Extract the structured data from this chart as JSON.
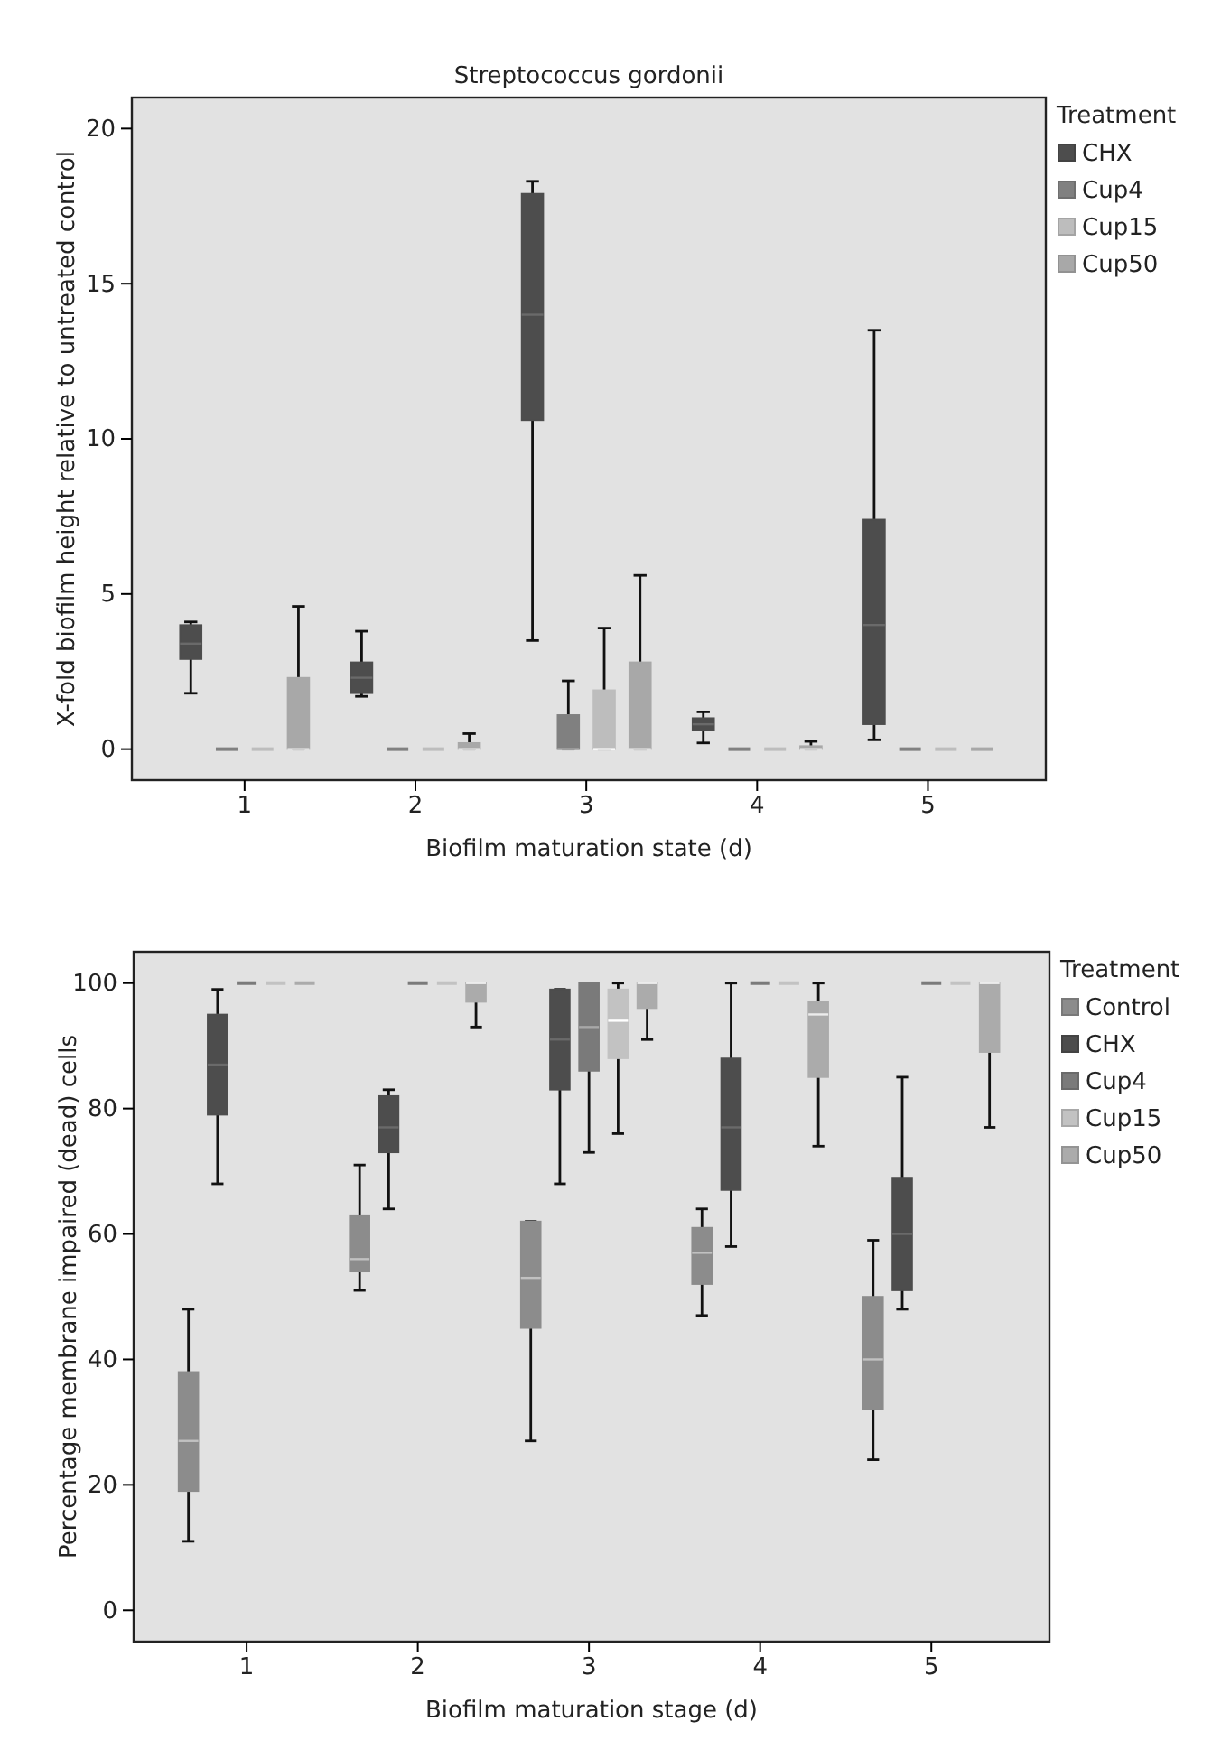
{
  "chart_data": [
    {
      "type": "box",
      "title": "Streptococcus gordonii",
      "xlabel": "Biofilm maturation state (d)",
      "ylabel": "X-fold biofilm height relative to untreated control",
      "legend_title": "Treatment",
      "legend": "top right",
      "categories": [
        "1",
        "2",
        "3",
        "4",
        "5"
      ],
      "ylim": [
        -1,
        21
      ],
      "yticks": [
        0,
        5,
        10,
        15,
        20
      ],
      "series": [
        {
          "name": "CHX",
          "color": "#4d4d4d",
          "boxes": [
            {
              "low": 1.8,
              "q1": 2.9,
              "median": 3.4,
              "q3": 4.0,
              "high": 4.1
            },
            {
              "low": 1.7,
              "q1": 1.8,
              "median": 2.3,
              "q3": 2.8,
              "high": 3.8
            },
            {
              "low": 3.5,
              "q1": 10.6,
              "median": 14,
              "q3": 17.9,
              "high": 18.3
            },
            {
              "low": 0.2,
              "q1": 0.6,
              "median": 0.8,
              "q3": 1.0,
              "high": 1.2
            },
            {
              "low": 0.3,
              "q1": 0.8,
              "median": 4,
              "q3": 7.4,
              "high": 13.5
            }
          ]
        },
        {
          "name": "Cup4",
          "color": "#808080",
          "boxes": [
            {
              "low": 0,
              "q1": 0,
              "median": 0,
              "q3": 0,
              "high": 0
            },
            {
              "low": 0,
              "q1": 0,
              "median": 0,
              "q3": 0,
              "high": 0
            },
            {
              "low": 0,
              "q1": 0,
              "median": 0,
              "q3": 1.1,
              "high": 2.2
            },
            {
              "low": 0,
              "q1": 0,
              "median": 0,
              "q3": 0,
              "high": 0
            },
            {
              "low": 0,
              "q1": 0,
              "median": 0,
              "q3": 0,
              "high": 0
            }
          ]
        },
        {
          "name": "Cup15",
          "color": "#bdbdbd",
          "boxes": [
            {
              "low": 0,
              "q1": 0,
              "median": 0,
              "q3": 0,
              "high": 0
            },
            {
              "low": 0,
              "q1": 0,
              "median": 0,
              "q3": 0,
              "high": 0
            },
            {
              "low": 0,
              "q1": 0,
              "median": 0,
              "q3": 1.9,
              "high": 3.9
            },
            {
              "low": 0,
              "q1": 0,
              "median": 0,
              "q3": 0,
              "high": 0
            },
            {
              "low": 0,
              "q1": 0,
              "median": 0,
              "q3": 0,
              "high": 0
            }
          ]
        },
        {
          "name": "Cup50",
          "color": "#a8a8a8",
          "boxes": [
            {
              "low": 0,
              "q1": 0,
              "median": 0,
              "q3": 2.3,
              "high": 4.6
            },
            {
              "low": 0,
              "q1": 0,
              "median": 0,
              "q3": 0.2,
              "high": 0.5
            },
            {
              "low": 0,
              "q1": 0,
              "median": 0,
              "q3": 2.8,
              "high": 5.6
            },
            {
              "low": 0,
              "q1": 0,
              "median": 0,
              "q3": 0.1,
              "high": 0.25
            },
            {
              "low": 0,
              "q1": 0,
              "median": 0,
              "q3": 0,
              "high": 0
            }
          ]
        }
      ]
    },
    {
      "type": "box",
      "xlabel": "Biofilm maturation stage (d)",
      "ylabel": "Percentage membrane impaired (dead) cells",
      "legend_title": "Treatment",
      "legend": "top right",
      "categories": [
        "1",
        "2",
        "3",
        "4",
        "5"
      ],
      "ylim": [
        -5,
        105
      ],
      "yticks": [
        0,
        20,
        40,
        60,
        80,
        100
      ],
      "series": [
        {
          "name": "Control",
          "color": "#8c8c8c",
          "boxes": [
            {
              "low": 11,
              "q1": 19,
              "median": 27,
              "q3": 38,
              "high": 48
            },
            {
              "low": 51,
              "q1": 54,
              "median": 56,
              "q3": 63,
              "high": 71
            },
            {
              "low": 27,
              "q1": 45,
              "median": 53,
              "q3": 62,
              "high": 62
            },
            {
              "low": 47,
              "q1": 52,
              "median": 57,
              "q3": 61,
              "high": 64
            },
            {
              "low": 24,
              "q1": 32,
              "median": 40,
              "q3": 50,
              "high": 59
            }
          ]
        },
        {
          "name": "CHX",
          "color": "#4d4d4d",
          "boxes": [
            {
              "low": 68,
              "q1": 79,
              "median": 87,
              "q3": 95,
              "high": 99
            },
            {
              "low": 64,
              "q1": 73,
              "median": 77,
              "q3": 82,
              "high": 83
            },
            {
              "low": 68,
              "q1": 83,
              "median": 91,
              "q3": 99,
              "high": 99
            },
            {
              "low": 58,
              "q1": 67,
              "median": 77,
              "q3": 88,
              "high": 100
            },
            {
              "low": 48,
              "q1": 51,
              "median": 60,
              "q3": 69,
              "high": 85
            }
          ]
        },
        {
          "name": "Cup4",
          "color": "#7a7a7a",
          "boxes": [
            {
              "low": 100,
              "q1": 100,
              "median": 100,
              "q3": 100,
              "high": 100
            },
            {
              "low": 100,
              "q1": 100,
              "median": 100,
              "q3": 100,
              "high": 100
            },
            {
              "low": 73,
              "q1": 86,
              "median": 93,
              "q3": 100,
              "high": 100
            },
            {
              "low": 100,
              "q1": 100,
              "median": 100,
              "q3": 100,
              "high": 100
            },
            {
              "low": 100,
              "q1": 100,
              "median": 100,
              "q3": 100,
              "high": 100
            }
          ]
        },
        {
          "name": "Cup15",
          "color": "#c2c2c2",
          "boxes": [
            {
              "low": 100,
              "q1": 100,
              "median": 100,
              "q3": 100,
              "high": 100
            },
            {
              "low": 100,
              "q1": 100,
              "median": 100,
              "q3": 100,
              "high": 100
            },
            {
              "low": 76,
              "q1": 88,
              "median": 94,
              "q3": 99,
              "high": 100
            },
            {
              "low": 100,
              "q1": 100,
              "median": 100,
              "q3": 100,
              "high": 100
            },
            {
              "low": 100,
              "q1": 100,
              "median": 100,
              "q3": 100,
              "high": 100
            }
          ]
        },
        {
          "name": "Cup50",
          "color": "#ababab",
          "boxes": [
            {
              "low": 100,
              "q1": 100,
              "median": 100,
              "q3": 100,
              "high": 100
            },
            {
              "low": 93,
              "q1": 97,
              "median": 100,
              "q3": 100,
              "high": 100
            },
            {
              "low": 91,
              "q1": 96,
              "median": 100,
              "q3": 100,
              "high": 100
            },
            {
              "low": 74,
              "q1": 85,
              "median": 95,
              "q3": 97,
              "high": 100
            },
            {
              "low": 77,
              "q1": 89,
              "median": 100,
              "q3": 100,
              "high": 100
            }
          ]
        }
      ]
    }
  ]
}
